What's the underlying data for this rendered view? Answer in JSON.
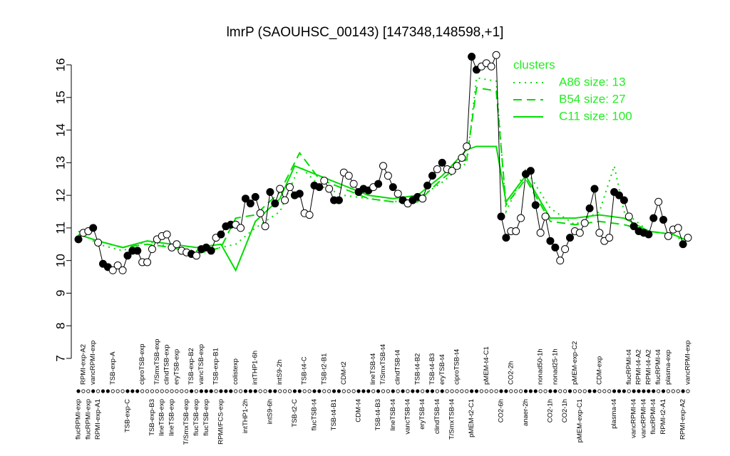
{
  "chart_data": {
    "type": "line",
    "title": "lmrP (SAOUHSC_00143) [147348,148598,+1]",
    "categories": [
      "flucRPMI-exp",
      "RPMI-exp-A2",
      "flucRPMI-exp",
      "vancRPMI-exp",
      "RPMI-exp-A1",
      null,
      null,
      "TSB-exp-A",
      null,
      null,
      "TSB-exp-C",
      null,
      null,
      "ciproTSB-exp",
      null,
      "TSB-exp-B3",
      "T/SmxTSB-exp",
      "lineTSB-exp",
      "clindTSB-exp",
      "lineTSB-exp",
      "eryTSB-exp",
      null,
      "T/SmxTSB-exp",
      "TSB-exp-B2",
      "flucTSB-exp",
      "vancTSB-exp",
      "flucTSB-exp",
      null,
      "TSB-exp-B1",
      "RPMI/FCS-exp",
      null,
      null,
      "colistexp",
      null,
      "intTHP1-2h",
      null,
      "intTHP1-6h",
      null,
      null,
      "intS9-6h",
      null,
      "intS9-2h",
      null,
      null,
      "TSB-t2-C",
      null,
      "TSB-t4-C",
      null,
      "flucTSB-t4",
      null,
      "TSB-t2-B1",
      null,
      "TSB-t4-B1",
      null,
      "CDM-t2",
      null,
      null,
      "CDM-t4",
      null,
      null,
      "lineTSB-t4",
      "TSB-t4-B3",
      "T/SmxTSB-t4",
      null,
      "lineTSB-t4",
      "clindTSB-t4",
      null,
      "vancTSB-t4",
      null,
      "TSB-t4-B2",
      "eryTSB-t4",
      null,
      "TSB-t4-B3",
      "clindTSB-t4",
      "eryTSB-t4",
      null,
      "T/SmxTSB-t4",
      "ciproTSB-t4",
      null,
      null,
      "pMEM-t2-C1",
      null,
      null,
      "pMEM-t4-C1",
      null,
      null,
      "CO2-6h",
      null,
      "CO2-2h",
      null,
      null,
      "anaer-2h",
      null,
      null,
      "nonad50-1h",
      null,
      "CO2-1h",
      "nonad25-1h",
      null,
      "CO2-1h",
      null,
      "pMEM-exp-C2",
      "pMEM-exp-C1",
      null,
      null,
      null,
      "CDM-exp",
      null,
      null,
      "plasma-t4",
      null,
      null,
      "flucRPMI-t4",
      "vancRPMI-t4",
      "RPMI-t4-A2",
      "vancRPMI-t4",
      "RPMI-t4-A2",
      "flucRPMI-t4",
      "flucRPMI-t4",
      "RPMI-t2-A1",
      "plasma-exp",
      null,
      null,
      "RPMI-exp-A2",
      "vancRPMI-exp"
    ],
    "values": [
      10.65,
      10.85,
      10.9,
      11.0,
      10.55,
      9.9,
      9.8,
      9.7,
      9.85,
      9.7,
      10.15,
      10.3,
      10.3,
      9.95,
      9.95,
      10.35,
      10.65,
      10.75,
      10.8,
      10.4,
      10.5,
      10.3,
      10.25,
      10.2,
      10.15,
      10.35,
      10.4,
      10.3,
      10.7,
      10.8,
      11.05,
      11.1,
      11.1,
      11.0,
      11.9,
      11.75,
      11.95,
      11.45,
      11.05,
      12.1,
      11.75,
      12.2,
      11.85,
      12.25,
      12.0,
      12.05,
      11.45,
      11.4,
      12.3,
      12.25,
      12.45,
      12.2,
      11.85,
      11.85,
      12.7,
      12.6,
      12.35,
      12.1,
      12.2,
      12.15,
      12.25,
      12.35,
      12.9,
      12.6,
      12.25,
      12.05,
      11.85,
      11.75,
      11.85,
      11.95,
      11.9,
      12.3,
      12.6,
      12.8,
      13.0,
      12.8,
      12.75,
      12.9,
      13.15,
      13.5,
      16.25,
      15.85,
      15.95,
      16.05,
      15.95,
      16.3,
      11.35,
      10.7,
      10.9,
      10.9,
      11.3,
      12.65,
      12.75,
      11.7,
      10.85,
      11.35,
      10.6,
      10.4,
      10.0,
      10.35,
      10.7,
      10.9,
      10.85,
      11.15,
      11.6,
      12.2,
      10.85,
      10.6,
      10.7,
      12.1,
      12.0,
      11.85,
      11.35,
      11.05,
      10.9,
      10.85,
      10.8,
      11.3,
      11.8,
      11.25,
      10.75,
      10.95,
      11.0,
      10.5,
      10.7
    ],
    "filled": [
      true,
      false,
      false,
      true,
      false,
      true,
      true,
      false,
      false,
      false,
      true,
      true,
      true,
      false,
      false,
      false,
      false,
      false,
      false,
      false,
      false,
      false,
      false,
      true,
      false,
      true,
      true,
      true,
      false,
      true,
      true,
      true,
      false,
      false,
      true,
      true,
      true,
      false,
      false,
      true,
      true,
      false,
      false,
      false,
      true,
      true,
      false,
      false,
      true,
      true,
      false,
      false,
      true,
      true,
      false,
      false,
      false,
      true,
      true,
      true,
      false,
      true,
      false,
      false,
      true,
      false,
      true,
      false,
      true,
      true,
      false,
      true,
      true,
      false,
      true,
      false,
      false,
      false,
      false,
      false,
      true,
      true,
      false,
      false,
      false,
      false,
      true,
      true,
      false,
      false,
      false,
      true,
      true,
      true,
      false,
      false,
      true,
      true,
      false,
      false,
      true,
      false,
      false,
      false,
      true,
      true,
      false,
      false,
      false,
      true,
      true,
      true,
      false,
      true,
      true,
      true,
      true,
      true,
      false,
      true,
      false,
      false,
      false,
      true,
      false
    ],
    "xlim": [
      1,
      125
    ],
    "ylim": [
      7,
      16
    ],
    "yticks": [
      7,
      8,
      9,
      10,
      11,
      12,
      13,
      14,
      15,
      16
    ],
    "color": "#000000",
    "legend_title": "clusters",
    "legend_position": "top-right",
    "series": [
      {
        "name": "A86 size: 13",
        "style": "dotted",
        "color": "#00dd00",
        "x": [
          1,
          5,
          10,
          15,
          20,
          25,
          30,
          33,
          37,
          42,
          46,
          50,
          55,
          60,
          65,
          70,
          75,
          80,
          82,
          86,
          88,
          92,
          97,
          102,
          107,
          110,
          112,
          117,
          122,
          125
        ],
        "values": [
          10.9,
          10.5,
          10.3,
          10.6,
          10.4,
          10.3,
          10.4,
          10.5,
          11.0,
          11.5,
          12.9,
          12.3,
          12.0,
          11.9,
          11.8,
          11.9,
          12.4,
          13.0,
          15.6,
          15.5,
          11.5,
          12.8,
          11.6,
          11.1,
          11.5,
          12.9,
          11.5,
          10.9,
          10.8,
          10.5
        ]
      },
      {
        "name": "B54 size: 27",
        "style": "dashed",
        "color": "#00dd00",
        "x": [
          1,
          5,
          10,
          15,
          20,
          25,
          30,
          33,
          37,
          42,
          46,
          50,
          55,
          60,
          65,
          70,
          75,
          80,
          82,
          86,
          88,
          92,
          97,
          102,
          107,
          112,
          117,
          122,
          125
        ],
        "values": [
          10.8,
          10.6,
          10.4,
          10.5,
          10.4,
          10.2,
          10.4,
          11.3,
          11.4,
          12.1,
          13.3,
          12.5,
          12.2,
          11.9,
          11.8,
          11.8,
          12.5,
          13.1,
          15.3,
          15.2,
          11.7,
          12.5,
          11.2,
          11.1,
          11.2,
          11.1,
          10.9,
          10.8,
          10.6
        ]
      },
      {
        "name": "C11 size: 100",
        "style": "solid",
        "color": "#00dd00",
        "x": [
          1,
          5,
          10,
          15,
          20,
          25,
          30,
          33,
          37,
          42,
          45,
          50,
          55,
          60,
          65,
          70,
          75,
          80,
          82,
          86,
          88,
          92,
          97,
          102,
          107,
          112,
          117,
          122,
          125
        ],
        "values": [
          10.8,
          10.6,
          10.4,
          10.6,
          10.5,
          10.4,
          10.5,
          9.7,
          11.2,
          11.9,
          12.9,
          12.6,
          12.3,
          12.0,
          11.9,
          12.0,
          12.6,
          13.4,
          13.5,
          13.5,
          11.8,
          12.6,
          11.3,
          11.3,
          11.4,
          11.3,
          10.9,
          10.8,
          10.6
        ]
      }
    ]
  }
}
